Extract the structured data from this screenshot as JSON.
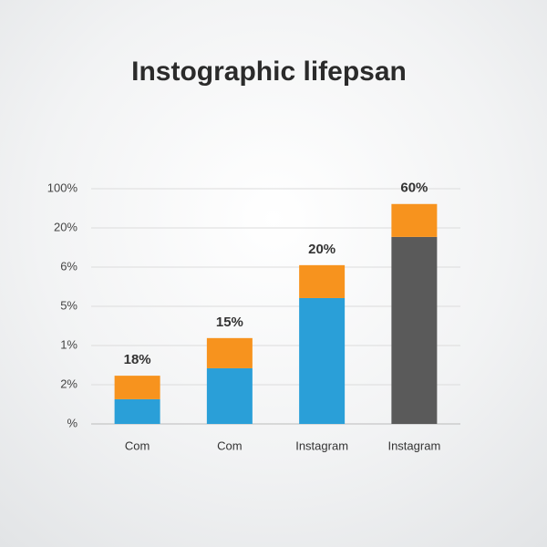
{
  "chart_data": {
    "type": "bar",
    "stacked": true,
    "title": "Instographic lifepsan",
    "categories": [
      "Com",
      "Com",
      "Instagram",
      "Instagram"
    ],
    "series": [
      {
        "color": "#2a9fd8",
        "colors": [
          "#2a9fd8",
          "#2a9fd8",
          "#2a9fd8",
          "#5a5a5a"
        ],
        "values": [
          0.63,
          1.42,
          3.21,
          4.77
        ]
      },
      {
        "color": "#f7931e",
        "values": [
          0.6,
          0.77,
          0.84,
          0.84
        ]
      }
    ],
    "annotations": [
      "18%",
      "15%",
      "20%",
      "60%"
    ],
    "ylim": [
      0,
      6
    ],
    "yticks": [
      {
        "value": 0,
        "label": "%"
      },
      {
        "value": 1,
        "label": "2%"
      },
      {
        "value": 2,
        "label": "1%"
      },
      {
        "value": 3,
        "label": "5%"
      },
      {
        "value": 4,
        "label": "6%"
      },
      {
        "value": 5,
        "label": "20%"
      },
      {
        "value": 6,
        "label": "100%"
      }
    ],
    "grid": true
  }
}
